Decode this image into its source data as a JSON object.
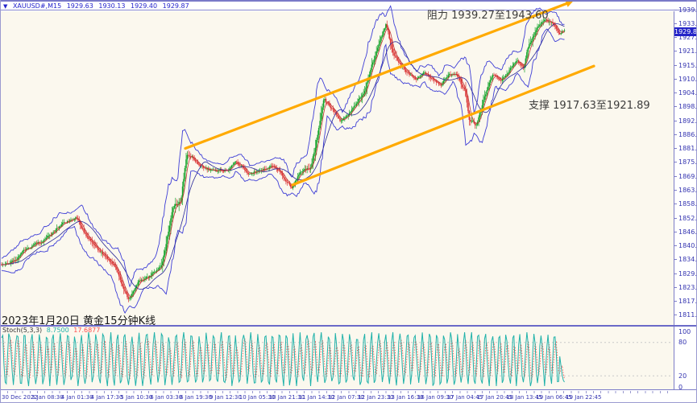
{
  "titlebar": {
    "dropdown_icon": "▼",
    "symbol": "XAUUSD#,M15",
    "open": "1929.63",
    "high": "1930.13",
    "low": "1929.40",
    "close": "1929.87"
  },
  "annotations": {
    "resistance": "阻力 1939.27至1943.60",
    "support": "支撑 1917.63至1921.89",
    "caption": "2023年1月20日 黄金15分钟K线"
  },
  "indicator": {
    "name": "Stoch(5,3,3)",
    "main_value": "8.7500",
    "signal_value": "17.6877",
    "scale_labels": [
      "100",
      "80",
      "20",
      "0"
    ]
  },
  "price_axis": {
    "ticks": [
      "1939.00",
      "1933.15",
      "1927.45",
      "1921.60",
      "1915.90",
      "1910.05",
      "1904.20",
      "1898.50",
      "1892.65",
      "1886.95",
      "1881.10",
      "1875.25",
      "1869.55",
      "1863.70",
      "1858.00",
      "1852.15",
      "1846.30",
      "1840.60",
      "1834.75",
      "1829.05",
      "1823.20",
      "1817.35",
      "1811.65"
    ],
    "current": "1929.87"
  },
  "time_axis": {
    "labels": [
      "30 Dec 2022",
      "3 Jan 08:30",
      "4 Jan 01:30",
      "4 Jan 17:30",
      "5 Jan 10:30",
      "6 Jan 03:30",
      "6 Jan 19:30",
      "9 Jan 12:30",
      "10 Jan 05:30",
      "10 Jan 21:30",
      "11 Jan 14:30",
      "12 Jan 07:30",
      "12 Jan 23:30",
      "13 Jan 16:30",
      "16 Jan 09:30",
      "17 Jan 04:45",
      "17 Jan 20:45",
      "18 Jan 13:45",
      "19 Jan 06:45",
      "19 Jan 22:45"
    ]
  },
  "chart_data": {
    "type": "candlestick",
    "symbol": "XAUUSD#",
    "timeframe": "M15",
    "ohlc_current": {
      "open": 1929.63,
      "high": 1930.13,
      "low": 1929.4,
      "close": 1929.87
    },
    "y_axis": {
      "min": 1810.0,
      "max": 1940.0,
      "tick_step": 5.85
    },
    "resistance_zone": [
      1939.27,
      1943.6
    ],
    "support_zone": [
      1917.63,
      1921.89
    ],
    "price_waypoints": [
      [
        8,
        1833
      ],
      [
        30,
        1839
      ],
      [
        55,
        1843
      ],
      [
        75,
        1849
      ],
      [
        95,
        1853
      ],
      [
        110,
        1843
      ],
      [
        125,
        1838
      ],
      [
        140,
        1833
      ],
      [
        150,
        1828
      ],
      [
        160,
        1819
      ],
      [
        172,
        1826
      ],
      [
        185,
        1828
      ],
      [
        200,
        1833
      ],
      [
        207,
        1843
      ],
      [
        215,
        1857
      ],
      [
        224,
        1859
      ],
      [
        232,
        1879
      ],
      [
        245,
        1876
      ],
      [
        260,
        1874
      ],
      [
        278,
        1872
      ],
      [
        292,
        1875
      ],
      [
        308,
        1871
      ],
      [
        322,
        1873
      ],
      [
        336,
        1875
      ],
      [
        350,
        1872
      ],
      [
        362,
        1866
      ],
      [
        372,
        1871
      ],
      [
        386,
        1873
      ],
      [
        396,
        1890
      ],
      [
        402,
        1900
      ],
      [
        412,
        1896
      ],
      [
        422,
        1891
      ],
      [
        432,
        1893
      ],
      [
        442,
        1898
      ],
      [
        452,
        1904
      ],
      [
        462,
        1914
      ],
      [
        472,
        1924
      ],
      [
        479,
        1932
      ],
      [
        487,
        1919
      ],
      [
        497,
        1914
      ],
      [
        507,
        1911
      ],
      [
        517,
        1909
      ],
      [
        527,
        1912
      ],
      [
        537,
        1908
      ],
      [
        547,
        1906
      ],
      [
        557,
        1910
      ],
      [
        567,
        1912
      ],
      [
        577,
        1906
      ],
      [
        583,
        1892
      ],
      [
        592,
        1890
      ],
      [
        602,
        1902
      ],
      [
        612,
        1910
      ],
      [
        622,
        1908
      ],
      [
        632,
        1912
      ],
      [
        642,
        1916
      ],
      [
        650,
        1914
      ],
      [
        657,
        1923
      ],
      [
        667,
        1930
      ],
      [
        676,
        1935
      ],
      [
        686,
        1932
      ],
      [
        694,
        1928
      ],
      [
        700,
        1929.9
      ]
    ],
    "trendlines": {
      "upper": {
        "from": [
          230,
          1881.2
        ],
        "to": [
          703,
          1941.5
        ],
        "arrow": true
      },
      "lower": {
        "from": [
          363,
          1866.0
        ],
        "to": [
          737,
          1915.5
        ],
        "arrow": false
      }
    },
    "stochastic": {
      "type": "line",
      "levels": [
        80,
        20
      ],
      "range": [
        0,
        100
      ],
      "k_last": 8.75,
      "d_last": 17.69
    }
  },
  "colors": {
    "up": "#17a32b",
    "down": "#dc3535",
    "envelope": "#3e3ed6",
    "ma_fast": "#c03030",
    "ma_slow": "#26269a",
    "trend": "#ffaa00",
    "stoch_k": "#20b2aa",
    "stoch_d": "#ff4d4d",
    "axis_text": "#3434b0",
    "border": "#7d7dc8",
    "chart_bg": "#fbf8ee",
    "tag_bg": "#2424c8",
    "level_dotted": "#c9c9c9"
  }
}
